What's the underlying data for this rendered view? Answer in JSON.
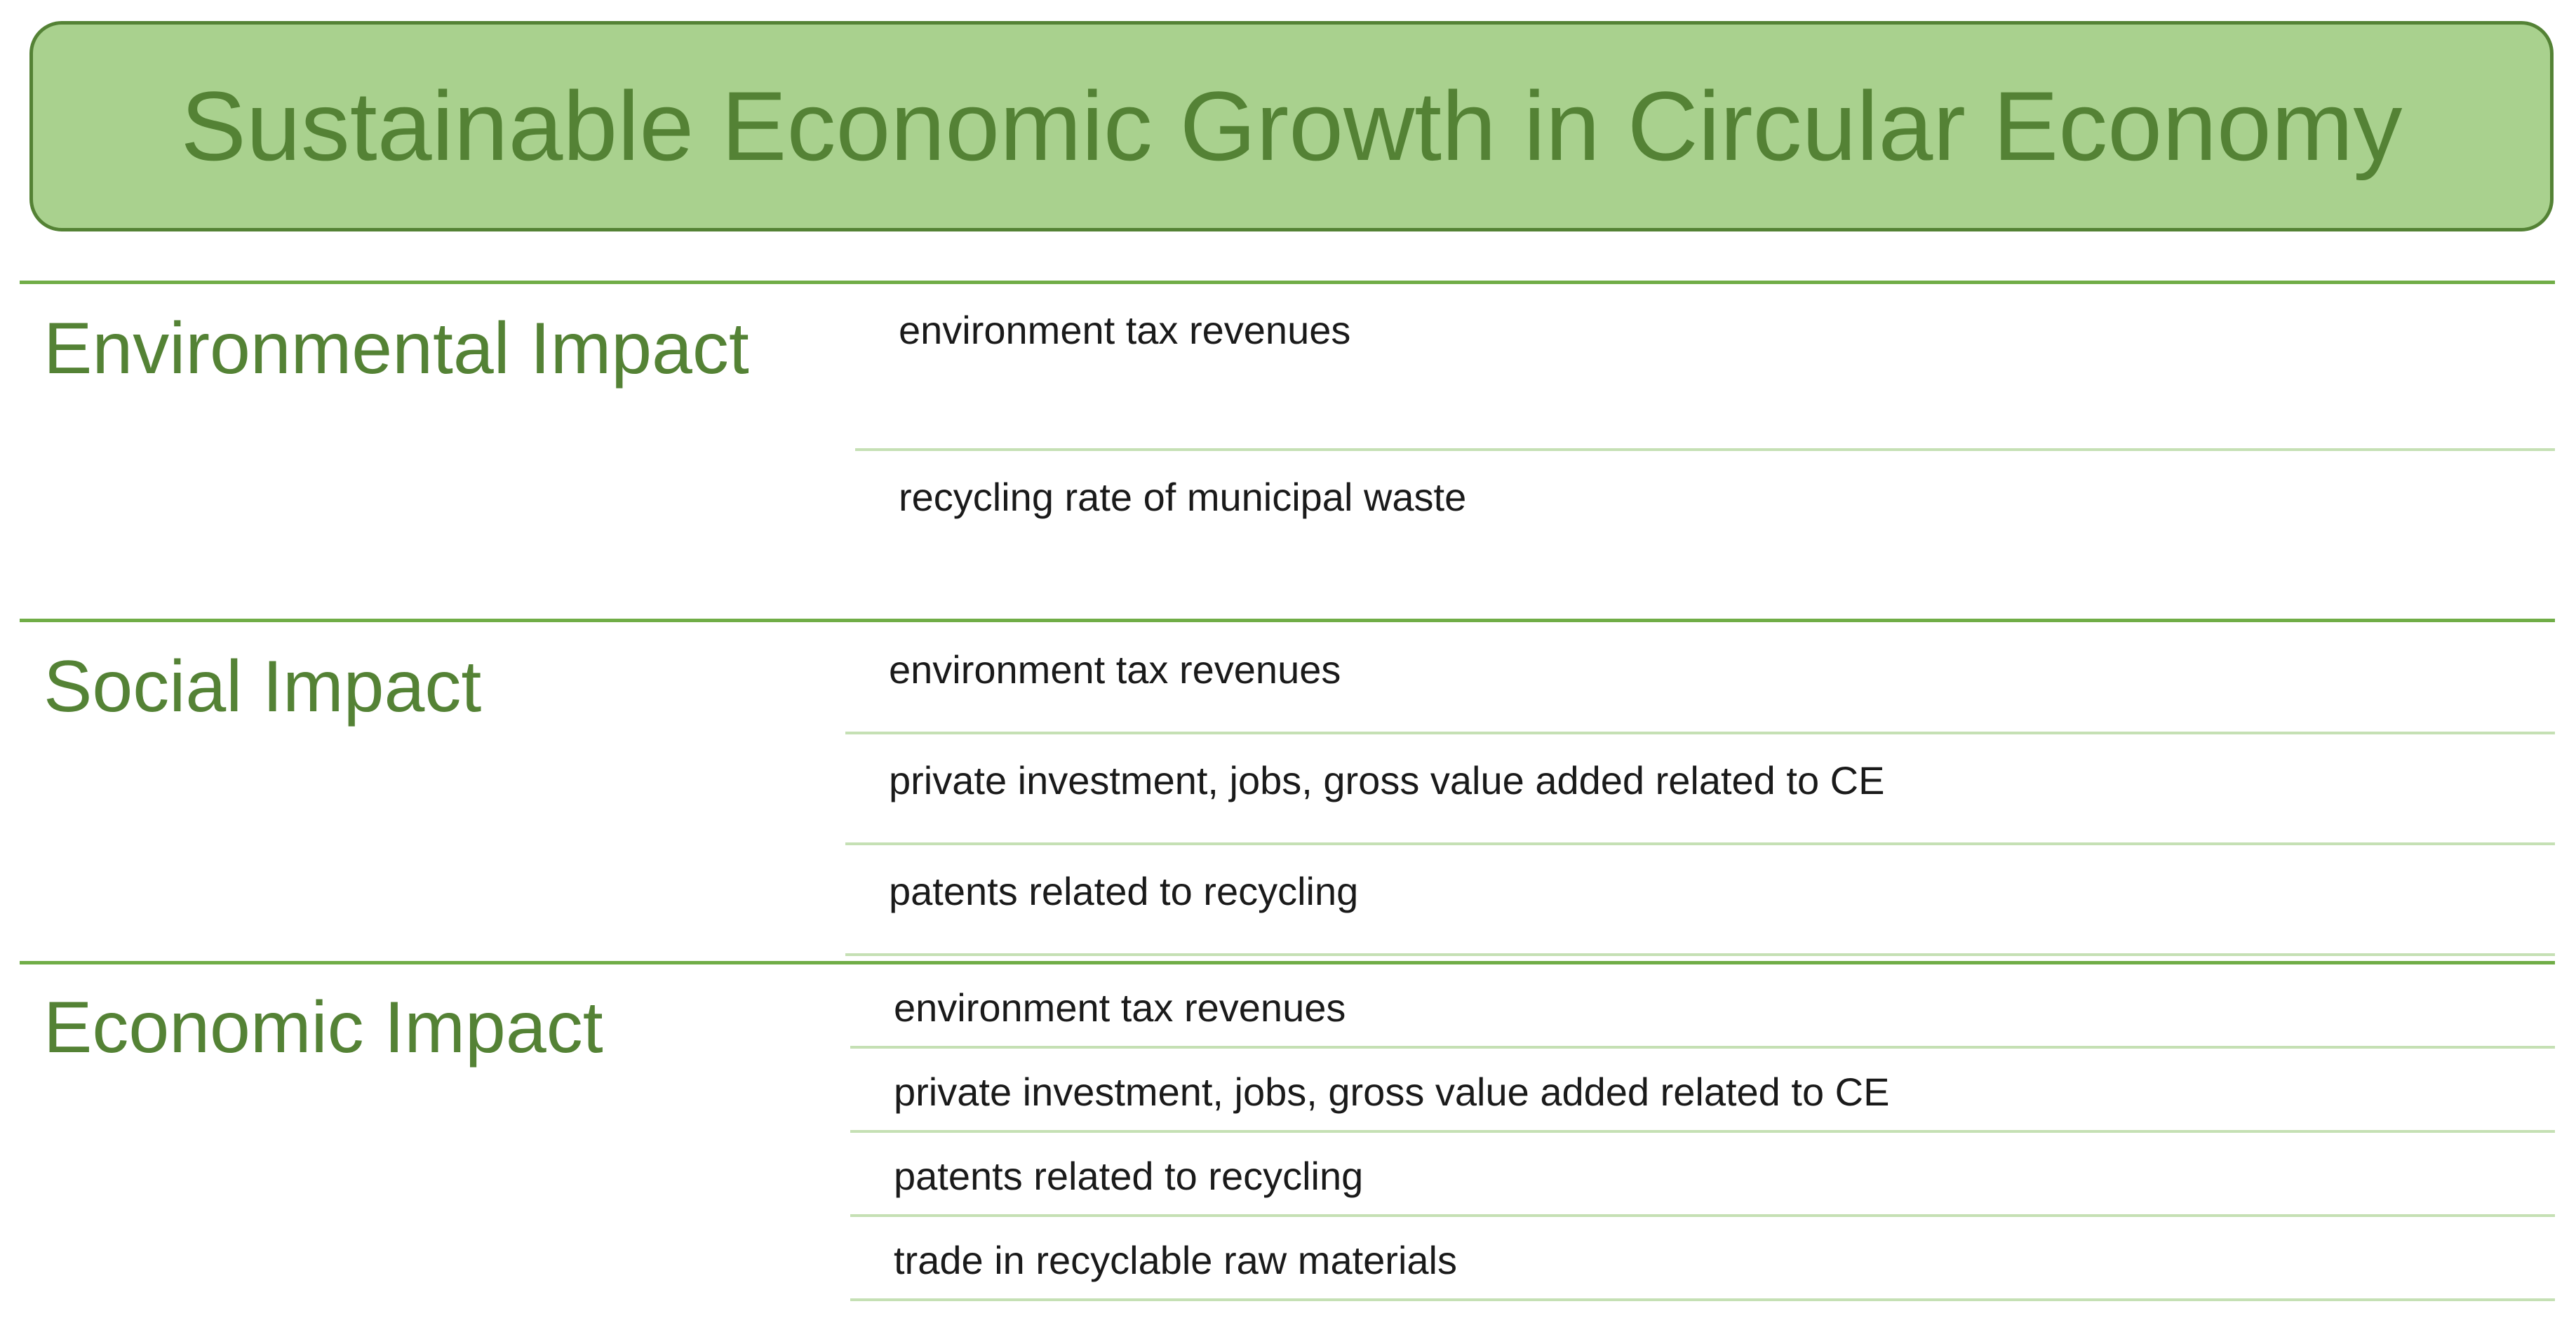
{
  "title": "Sustainable Economic Growth in Circular Economy",
  "colors": {
    "title_fill": "#a9d18e",
    "title_border": "#548235",
    "heading_text": "#548235",
    "section_rule": "#70ad47",
    "item_rule": "#c5e0b4"
  },
  "sections": [
    {
      "heading": "Environmental Impact",
      "items": [
        "environment tax revenues",
        "recycling rate of municipal waste"
      ]
    },
    {
      "heading": "Social Impact",
      "items": [
        "environment tax revenues",
        "private investment, jobs, gross value added related to CE",
        "patents related to recycling"
      ]
    },
    {
      "heading": "Economic Impact",
      "items": [
        "environment tax revenues",
        "private investment, jobs, gross value added related to CE",
        "patents related to recycling",
        "trade in recyclable raw materials"
      ]
    }
  ]
}
